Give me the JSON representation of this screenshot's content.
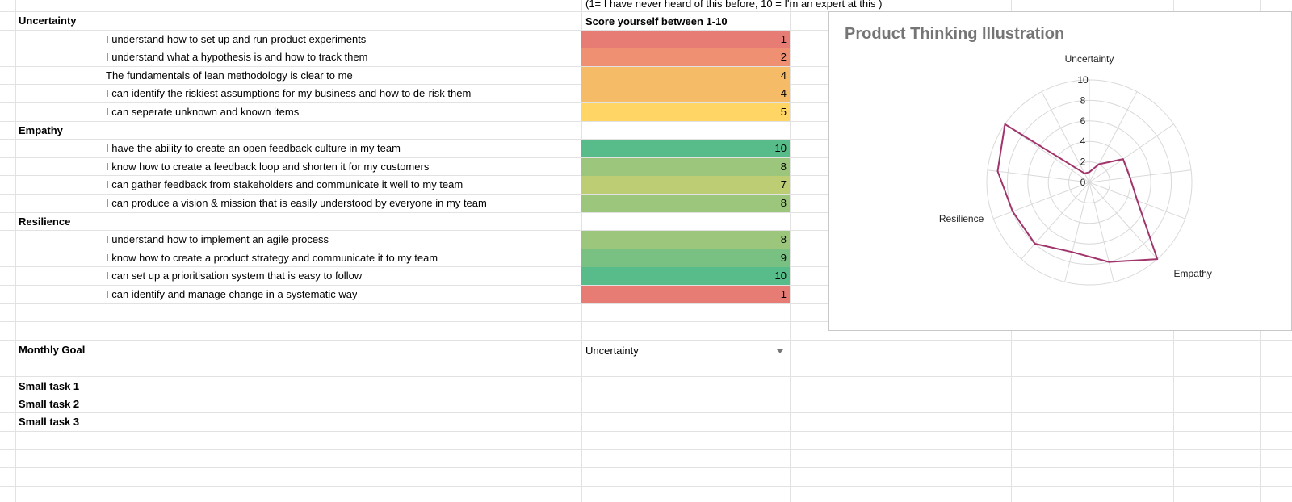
{
  "note": "(1= I have never heard of this before, 10 = I'm an expert at this )",
  "score_header": "Score yourself between 1-10",
  "sections": [
    {
      "name": "Uncertainty",
      "row": 1,
      "items": [
        {
          "text": "I understand how to set up and run product experiments",
          "score": 1,
          "color": "#e67c73"
        },
        {
          "text": "I understand what a hypothesis is and how to track them",
          "score": 2,
          "color": "#ee9071"
        },
        {
          "text": "The fundamentals of lean methodology is clear to me",
          "score": 4,
          "color": "#f6bb67"
        },
        {
          "text": "I can identify the riskiest assumptions for my business and how to de-risk them",
          "score": 4,
          "color": "#f6bb67"
        },
        {
          "text": "I can seperate unknown and known items",
          "score": 5,
          "color": "#ffd666"
        }
      ]
    },
    {
      "name": "Empathy",
      "row": 7,
      "items": [
        {
          "text": "I have the ability to create an open feedback culture in my team",
          "score": 10,
          "color": "#57bb8a"
        },
        {
          "text": "I know how to create a feedback loop and shorten it for my customers",
          "score": 8,
          "color": "#9bc67c"
        },
        {
          "text": "I can gather feedback from stakeholders and communicate it well to my team",
          "score": 7,
          "color": "#bccd73"
        },
        {
          "text": "I can produce a vision & mission that is easily understood by everyone in my team",
          "score": 8,
          "color": "#9bc67c"
        }
      ]
    },
    {
      "name": "Resilience",
      "row": 12,
      "items": [
        {
          "text": "I understand how to implement an agile process",
          "score": 8,
          "color": "#9bc67c"
        },
        {
          "text": "I know how to create a product strategy and communicate it to my team",
          "score": 9,
          "color": "#79c083"
        },
        {
          "text": "I can set up a prioritisation system that is easy to follow",
          "score": 10,
          "color": "#57bb8a"
        },
        {
          "text": "I can identify and manage change in a systematic way",
          "score": 1,
          "color": "#e67c73"
        }
      ]
    }
  ],
  "monthly_goal": {
    "label": "Monthly Goal",
    "value": "Uncertainty"
  },
  "small_tasks": [
    "Small task 1",
    "Small task 2",
    "Small task 3"
  ],
  "chart_data": {
    "type": "radar",
    "title": "Product Thinking Illustration",
    "axis_labels": [
      "Uncertainty",
      "Empathy",
      "Resilience"
    ],
    "radial_ticks": [
      "0",
      "2",
      "4",
      "6",
      "8",
      "10"
    ],
    "range": [
      0,
      10
    ],
    "series": [
      {
        "values": [
          1,
          2,
          4,
          4,
          5,
          10,
          8,
          7,
          8,
          8,
          9,
          10,
          1
        ],
        "color": "#a1356b"
      }
    ],
    "grid": true
  }
}
